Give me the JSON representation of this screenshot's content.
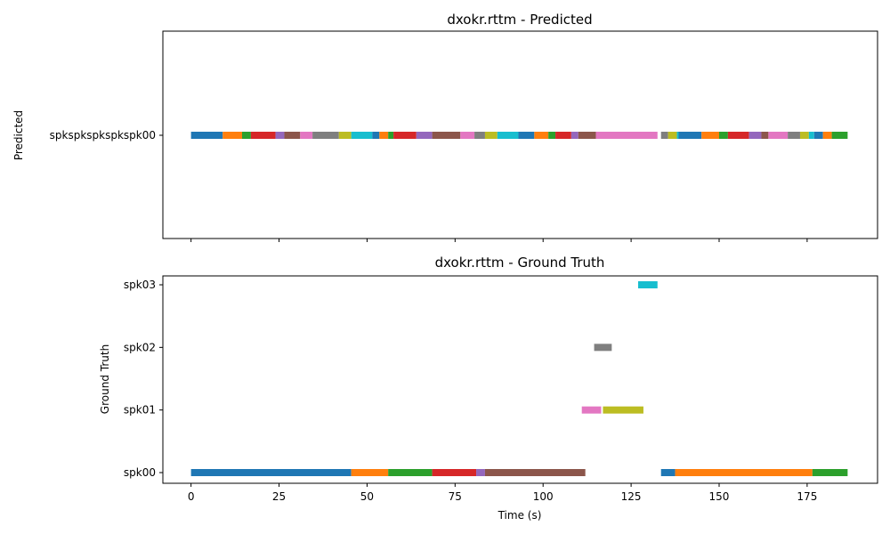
{
  "chart_data": [
    {
      "type": "timeline",
      "title": "dxokr.rttm - Predicted",
      "ylabel": "Predicted",
      "xlabel": "",
      "xlim": [
        -8,
        195
      ],
      "xticks": [
        0,
        25,
        50,
        75,
        100,
        125,
        150,
        175
      ],
      "show_xtick_labels": false,
      "categories": [
        "spkspkspkspkspk00"
      ],
      "segments": [
        {
          "row": 0,
          "start": 0.0,
          "end": 9.0,
          "color": "#1f77b4"
        },
        {
          "row": 0,
          "start": 9.0,
          "end": 14.5,
          "color": "#ff7f0e"
        },
        {
          "row": 0,
          "start": 14.5,
          "end": 17.0,
          "color": "#2ca02c"
        },
        {
          "row": 0,
          "start": 17.0,
          "end": 24.0,
          "color": "#d62728"
        },
        {
          "row": 0,
          "start": 24.0,
          "end": 26.5,
          "color": "#9467bd"
        },
        {
          "row": 0,
          "start": 26.5,
          "end": 31.0,
          "color": "#8c564b"
        },
        {
          "row": 0,
          "start": 31.0,
          "end": 34.5,
          "color": "#e377c2"
        },
        {
          "row": 0,
          "start": 34.5,
          "end": 42.0,
          "color": "#7f7f7f"
        },
        {
          "row": 0,
          "start": 42.0,
          "end": 45.5,
          "color": "#bcbd22"
        },
        {
          "row": 0,
          "start": 45.5,
          "end": 51.5,
          "color": "#17becf"
        },
        {
          "row": 0,
          "start": 51.5,
          "end": 53.5,
          "color": "#1f77b4"
        },
        {
          "row": 0,
          "start": 53.5,
          "end": 56.0,
          "color": "#ff7f0e"
        },
        {
          "row": 0,
          "start": 56.0,
          "end": 57.5,
          "color": "#2ca02c"
        },
        {
          "row": 0,
          "start": 57.5,
          "end": 64.0,
          "color": "#d62728"
        },
        {
          "row": 0,
          "start": 64.0,
          "end": 68.5,
          "color": "#9467bd"
        },
        {
          "row": 0,
          "start": 68.5,
          "end": 76.5,
          "color": "#8c564b"
        },
        {
          "row": 0,
          "start": 76.5,
          "end": 80.5,
          "color": "#e377c2"
        },
        {
          "row": 0,
          "start": 80.5,
          "end": 83.5,
          "color": "#7f7f7f"
        },
        {
          "row": 0,
          "start": 83.5,
          "end": 87.0,
          "color": "#bcbd22"
        },
        {
          "row": 0,
          "start": 87.0,
          "end": 93.0,
          "color": "#17becf"
        },
        {
          "row": 0,
          "start": 93.0,
          "end": 97.5,
          "color": "#1f77b4"
        },
        {
          "row": 0,
          "start": 97.5,
          "end": 101.5,
          "color": "#ff7f0e"
        },
        {
          "row": 0,
          "start": 101.5,
          "end": 103.5,
          "color": "#2ca02c"
        },
        {
          "row": 0,
          "start": 103.5,
          "end": 108.0,
          "color": "#d62728"
        },
        {
          "row": 0,
          "start": 108.0,
          "end": 110.0,
          "color": "#9467bd"
        },
        {
          "row": 0,
          "start": 110.0,
          "end": 115.0,
          "color": "#8c564b"
        },
        {
          "row": 0,
          "start": 115.0,
          "end": 132.5,
          "color": "#e377c2"
        },
        {
          "row": 0,
          "start": 133.5,
          "end": 135.5,
          "color": "#7f7f7f"
        },
        {
          "row": 0,
          "start": 135.5,
          "end": 138.0,
          "color": "#bcbd22"
        },
        {
          "row": 0,
          "start": 138.0,
          "end": 138.5,
          "color": "#17becf"
        },
        {
          "row": 0,
          "start": 138.5,
          "end": 145.0,
          "color": "#1f77b4"
        },
        {
          "row": 0,
          "start": 145.0,
          "end": 150.0,
          "color": "#ff7f0e"
        },
        {
          "row": 0,
          "start": 150.0,
          "end": 152.5,
          "color": "#2ca02c"
        },
        {
          "row": 0,
          "start": 152.5,
          "end": 158.5,
          "color": "#d62728"
        },
        {
          "row": 0,
          "start": 158.5,
          "end": 162.0,
          "color": "#9467bd"
        },
        {
          "row": 0,
          "start": 162.0,
          "end": 164.0,
          "color": "#8c564b"
        },
        {
          "row": 0,
          "start": 164.0,
          "end": 169.5,
          "color": "#e377c2"
        },
        {
          "row": 0,
          "start": 169.5,
          "end": 173.0,
          "color": "#7f7f7f"
        },
        {
          "row": 0,
          "start": 173.0,
          "end": 175.5,
          "color": "#bcbd22"
        },
        {
          "row": 0,
          "start": 175.5,
          "end": 177.0,
          "color": "#17becf"
        },
        {
          "row": 0,
          "start": 177.0,
          "end": 179.5,
          "color": "#1f77b4"
        },
        {
          "row": 0,
          "start": 179.5,
          "end": 182.0,
          "color": "#ff7f0e"
        },
        {
          "row": 0,
          "start": 182.0,
          "end": 186.5,
          "color": "#2ca02c"
        }
      ]
    },
    {
      "type": "timeline",
      "title": "dxokr.rttm - Ground Truth",
      "ylabel": "Ground Truth",
      "xlabel": "Time (s)",
      "xlim": [
        -8,
        195
      ],
      "xticks": [
        0,
        25,
        50,
        75,
        100,
        125,
        150,
        175
      ],
      "show_xtick_labels": true,
      "categories": [
        "spk00",
        "spk01",
        "spk02",
        "spk03"
      ],
      "segments": [
        {
          "row": 0,
          "start": 0.0,
          "end": 45.5,
          "color": "#1f77b4"
        },
        {
          "row": 0,
          "start": 45.5,
          "end": 56.0,
          "color": "#ff7f0e"
        },
        {
          "row": 0,
          "start": 56.0,
          "end": 68.5,
          "color": "#2ca02c"
        },
        {
          "row": 0,
          "start": 68.5,
          "end": 81.0,
          "color": "#d62728"
        },
        {
          "row": 0,
          "start": 81.0,
          "end": 83.5,
          "color": "#9467bd"
        },
        {
          "row": 0,
          "start": 83.5,
          "end": 112.0,
          "color": "#8c564b"
        },
        {
          "row": 1,
          "start": 111.0,
          "end": 116.5,
          "color": "#e377c2"
        },
        {
          "row": 2,
          "start": 114.5,
          "end": 119.5,
          "color": "#7f7f7f"
        },
        {
          "row": 1,
          "start": 117.0,
          "end": 128.5,
          "color": "#bcbd22"
        },
        {
          "row": 3,
          "start": 127.0,
          "end": 132.5,
          "color": "#17becf"
        },
        {
          "row": 0,
          "start": 133.5,
          "end": 137.5,
          "color": "#1f77b4"
        },
        {
          "row": 0,
          "start": 137.5,
          "end": 176.5,
          "color": "#ff7f0e"
        },
        {
          "row": 0,
          "start": 176.5,
          "end": 186.5,
          "color": "#2ca02c"
        }
      ]
    }
  ]
}
